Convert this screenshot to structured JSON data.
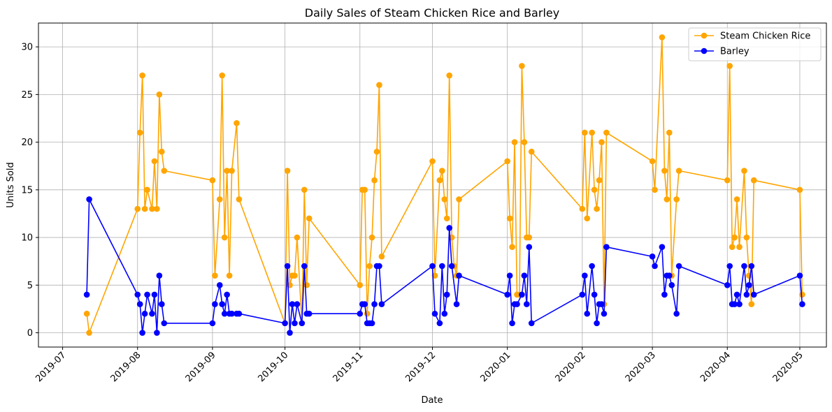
{
  "chart_data": {
    "type": "line",
    "title": "Daily Sales of Steam Chicken Rice and Barley",
    "xlabel": "Date",
    "ylabel": "Units Sold",
    "ylim": [
      -1.5,
      32.5
    ],
    "xlim": [
      "2019-06-21",
      "2020-05-12"
    ],
    "x_ticks": [
      "2019-07-01",
      "2019-08-01",
      "2019-09-01",
      "2019-10-01",
      "2019-11-01",
      "2019-12-01",
      "2020-01-01",
      "2020-02-01",
      "2020-03-01",
      "2020-04-01",
      "2020-05-01"
    ],
    "x_tick_labels": [
      "2019-07",
      "2019-08",
      "2019-09",
      "2019-10",
      "2019-11",
      "2019-12",
      "2020-01",
      "2020-02",
      "2020-03",
      "2020-04",
      "2020-05"
    ],
    "y_ticks": [
      0,
      5,
      10,
      15,
      20,
      25,
      30
    ],
    "y_tick_labels": [
      "0",
      "5",
      "10",
      "15",
      "20",
      "25",
      "30"
    ],
    "grid": true,
    "legend_position": "top-right",
    "series": [
      {
        "name": "Steam Chicken Rice",
        "color": "#ffa500",
        "points": [
          [
            "2019-07-11",
            2
          ],
          [
            "2019-07-12",
            0
          ],
          [
            "2019-08-01",
            13
          ],
          [
            "2019-08-02",
            21
          ],
          [
            "2019-08-03",
            27
          ],
          [
            "2019-08-04",
            13
          ],
          [
            "2019-08-05",
            15
          ],
          [
            "2019-08-07",
            13
          ],
          [
            "2019-08-08",
            18
          ],
          [
            "2019-08-09",
            13
          ],
          [
            "2019-08-10",
            25
          ],
          [
            "2019-08-11",
            19
          ],
          [
            "2019-08-12",
            17
          ],
          [
            "2019-09-01",
            16
          ],
          [
            "2019-09-02",
            6
          ],
          [
            "2019-09-04",
            14
          ],
          [
            "2019-09-05",
            27
          ],
          [
            "2019-09-06",
            10
          ],
          [
            "2019-09-07",
            17
          ],
          [
            "2019-09-08",
            6
          ],
          [
            "2019-09-09",
            17
          ],
          [
            "2019-09-11",
            22
          ],
          [
            "2019-09-12",
            14
          ],
          [
            "2019-10-01",
            1
          ],
          [
            "2019-10-02",
            17
          ],
          [
            "2019-10-03",
            5
          ],
          [
            "2019-10-04",
            6
          ],
          [
            "2019-10-05",
            6
          ],
          [
            "2019-10-06",
            10
          ],
          [
            "2019-10-08",
            1
          ],
          [
            "2019-10-09",
            15
          ],
          [
            "2019-10-10",
            5
          ],
          [
            "2019-10-11",
            12
          ],
          [
            "2019-11-01",
            5
          ],
          [
            "2019-11-02",
            15
          ],
          [
            "2019-11-03",
            15
          ],
          [
            "2019-11-04",
            2
          ],
          [
            "2019-11-05",
            7
          ],
          [
            "2019-11-06",
            10
          ],
          [
            "2019-11-07",
            16
          ],
          [
            "2019-11-08",
            19
          ],
          [
            "2019-11-09",
            26
          ],
          [
            "2019-11-10",
            8
          ],
          [
            "2019-12-01",
            18
          ],
          [
            "2019-12-02",
            6
          ],
          [
            "2019-12-04",
            16
          ],
          [
            "2019-12-05",
            17
          ],
          [
            "2019-12-06",
            14
          ],
          [
            "2019-12-07",
            12
          ],
          [
            "2019-12-08",
            27
          ],
          [
            "2019-12-09",
            10
          ],
          [
            "2019-12-10",
            7
          ],
          [
            "2019-12-11",
            6
          ],
          [
            "2019-12-12",
            14
          ],
          [
            "2020-01-01",
            18
          ],
          [
            "2020-01-02",
            12
          ],
          [
            "2020-01-03",
            9
          ],
          [
            "2020-01-04",
            20
          ],
          [
            "2020-01-05",
            4
          ],
          [
            "2020-01-06",
            4
          ],
          [
            "2020-01-07",
            28
          ],
          [
            "2020-01-08",
            20
          ],
          [
            "2020-01-09",
            10
          ],
          [
            "2020-01-10",
            10
          ],
          [
            "2020-01-11",
            19
          ],
          [
            "2020-02-01",
            13
          ],
          [
            "2020-02-02",
            21
          ],
          [
            "2020-02-03",
            12
          ],
          [
            "2020-02-05",
            21
          ],
          [
            "2020-02-06",
            15
          ],
          [
            "2020-02-07",
            13
          ],
          [
            "2020-02-08",
            16
          ],
          [
            "2020-02-09",
            20
          ],
          [
            "2020-02-10",
            3
          ],
          [
            "2020-02-11",
            21
          ],
          [
            "2020-03-01",
            18
          ],
          [
            "2020-03-02",
            15
          ],
          [
            "2020-03-05",
            31
          ],
          [
            "2020-03-06",
            17
          ],
          [
            "2020-03-07",
            14
          ],
          [
            "2020-03-08",
            21
          ],
          [
            "2020-03-09",
            6
          ],
          [
            "2020-03-11",
            14
          ],
          [
            "2020-03-12",
            17
          ],
          [
            "2020-04-01",
            16
          ],
          [
            "2020-04-02",
            28
          ],
          [
            "2020-04-03",
            9
          ],
          [
            "2020-04-04",
            10
          ],
          [
            "2020-04-05",
            14
          ],
          [
            "2020-04-06",
            9
          ],
          [
            "2020-04-08",
            17
          ],
          [
            "2020-04-09",
            10
          ],
          [
            "2020-04-10",
            6
          ],
          [
            "2020-04-11",
            3
          ],
          [
            "2020-04-12",
            16
          ],
          [
            "2020-05-01",
            15
          ],
          [
            "2020-05-02",
            4
          ]
        ]
      },
      {
        "name": "Barley",
        "color": "#0000ff",
        "points": [
          [
            "2019-07-11",
            4
          ],
          [
            "2019-07-12",
            14
          ],
          [
            "2019-08-01",
            4
          ],
          [
            "2019-08-02",
            3
          ],
          [
            "2019-08-03",
            0
          ],
          [
            "2019-08-04",
            2
          ],
          [
            "2019-08-05",
            4
          ],
          [
            "2019-08-07",
            2
          ],
          [
            "2019-08-08",
            4
          ],
          [
            "2019-08-09",
            0
          ],
          [
            "2019-08-10",
            6
          ],
          [
            "2019-08-11",
            3
          ],
          [
            "2019-08-12",
            1
          ],
          [
            "2019-09-01",
            1
          ],
          [
            "2019-09-02",
            3
          ],
          [
            "2019-09-04",
            5
          ],
          [
            "2019-09-05",
            3
          ],
          [
            "2019-09-06",
            2
          ],
          [
            "2019-09-07",
            4
          ],
          [
            "2019-09-08",
            2
          ],
          [
            "2019-09-09",
            2
          ],
          [
            "2019-09-11",
            2
          ],
          [
            "2019-09-12",
            2
          ],
          [
            "2019-10-01",
            1
          ],
          [
            "2019-10-02",
            7
          ],
          [
            "2019-10-03",
            0
          ],
          [
            "2019-10-04",
            3
          ],
          [
            "2019-10-05",
            1
          ],
          [
            "2019-10-06",
            3
          ],
          [
            "2019-10-08",
            1
          ],
          [
            "2019-10-09",
            7
          ],
          [
            "2019-10-10",
            2
          ],
          [
            "2019-10-11",
            2
          ],
          [
            "2019-11-01",
            2
          ],
          [
            "2019-11-02",
            3
          ],
          [
            "2019-11-03",
            3
          ],
          [
            "2019-11-04",
            1
          ],
          [
            "2019-11-05",
            1
          ],
          [
            "2019-11-06",
            1
          ],
          [
            "2019-11-07",
            3
          ],
          [
            "2019-11-08",
            7
          ],
          [
            "2019-11-09",
            7
          ],
          [
            "2019-11-10",
            3
          ],
          [
            "2019-12-01",
            7
          ],
          [
            "2019-12-02",
            2
          ],
          [
            "2019-12-04",
            1
          ],
          [
            "2019-12-05",
            7
          ],
          [
            "2019-12-06",
            2
          ],
          [
            "2019-12-07",
            4
          ],
          [
            "2019-12-08",
            11
          ],
          [
            "2019-12-09",
            7
          ],
          [
            "2019-12-11",
            3
          ],
          [
            "2019-12-12",
            6
          ],
          [
            "2020-01-01",
            4
          ],
          [
            "2020-01-02",
            6
          ],
          [
            "2020-01-03",
            1
          ],
          [
            "2020-01-04",
            3
          ],
          [
            "2020-01-05",
            3
          ],
          [
            "2020-01-07",
            4
          ],
          [
            "2020-01-08",
            6
          ],
          [
            "2020-01-09",
            3
          ],
          [
            "2020-01-10",
            9
          ],
          [
            "2020-01-11",
            1
          ],
          [
            "2020-02-01",
            4
          ],
          [
            "2020-02-02",
            6
          ],
          [
            "2020-02-03",
            2
          ],
          [
            "2020-02-05",
            7
          ],
          [
            "2020-02-06",
            4
          ],
          [
            "2020-02-07",
            1
          ],
          [
            "2020-02-08",
            3
          ],
          [
            "2020-02-09",
            3
          ],
          [
            "2020-02-10",
            2
          ],
          [
            "2020-02-11",
            9
          ],
          [
            "2020-03-01",
            8
          ],
          [
            "2020-03-02",
            7
          ],
          [
            "2020-03-05",
            9
          ],
          [
            "2020-03-06",
            4
          ],
          [
            "2020-03-07",
            6
          ],
          [
            "2020-03-08",
            6
          ],
          [
            "2020-03-09",
            5
          ],
          [
            "2020-03-11",
            2
          ],
          [
            "2020-03-12",
            7
          ],
          [
            "2020-04-01",
            5
          ],
          [
            "2020-04-02",
            7
          ],
          [
            "2020-04-03",
            3
          ],
          [
            "2020-04-04",
            3
          ],
          [
            "2020-04-05",
            4
          ],
          [
            "2020-04-06",
            3
          ],
          [
            "2020-04-08",
            7
          ],
          [
            "2020-04-09",
            4
          ],
          [
            "2020-04-10",
            5
          ],
          [
            "2020-04-11",
            7
          ],
          [
            "2020-04-12",
            4
          ],
          [
            "2020-05-01",
            6
          ],
          [
            "2020-05-02",
            3
          ]
        ]
      }
    ]
  }
}
